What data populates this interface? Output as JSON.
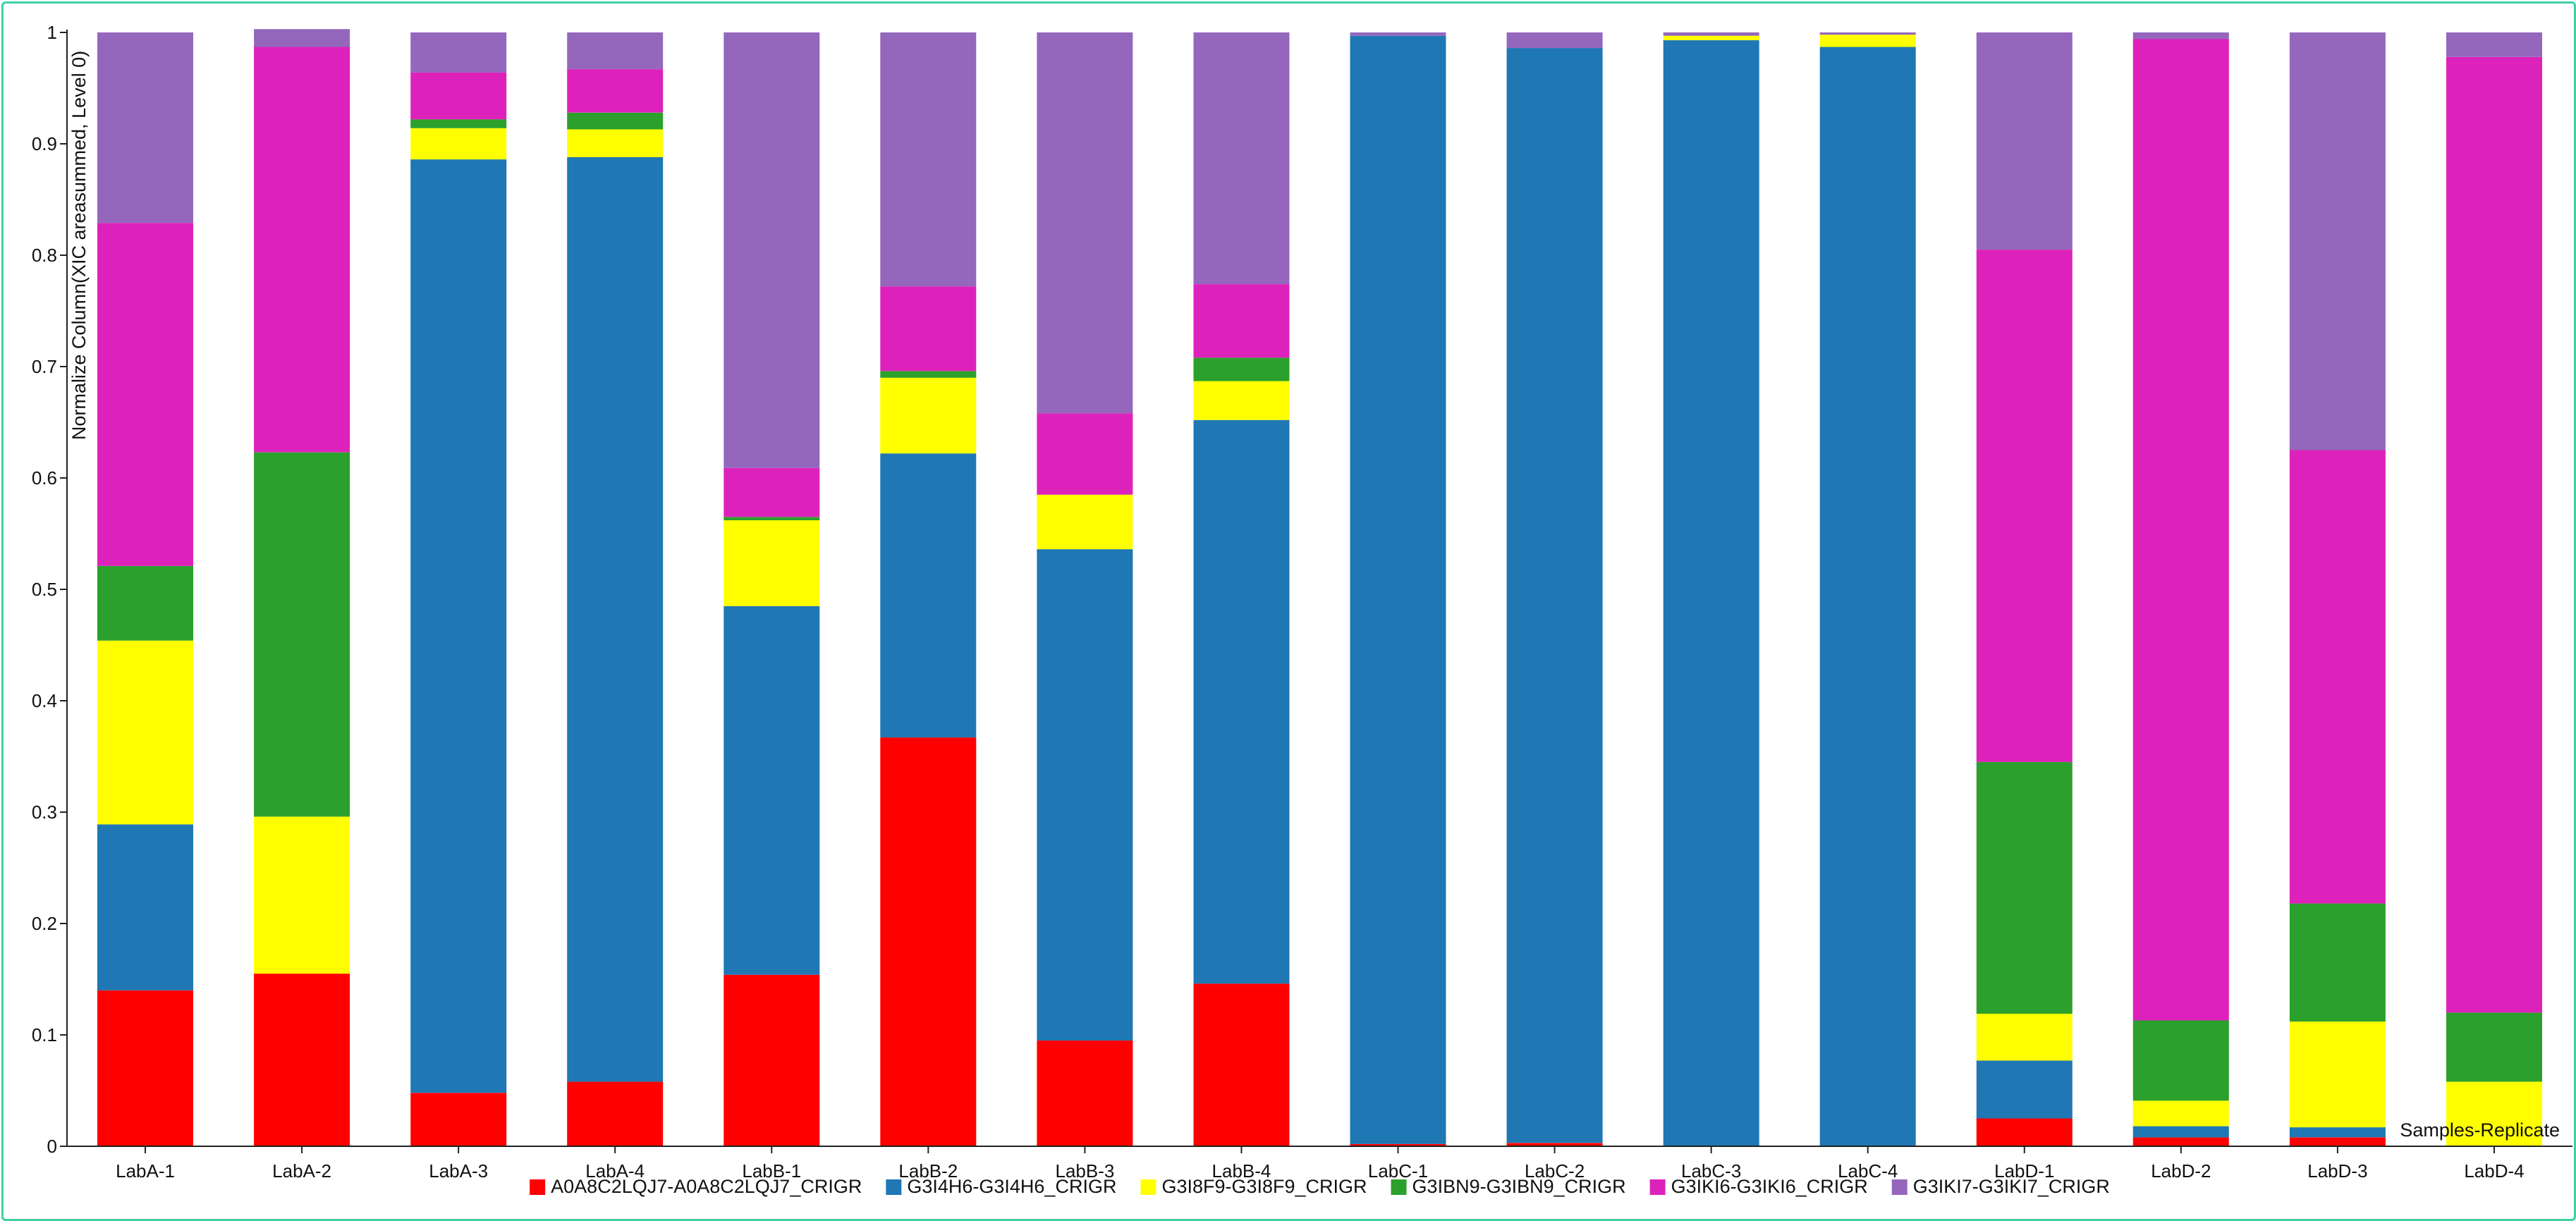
{
  "chart_data": {
    "type": "bar",
    "stacked": true,
    "ylabel": "Normalize Column(XIC areasummed, Level 0)",
    "xlabel": "Samples-Replicate",
    "ylim": [
      0,
      1
    ],
    "yticks": [
      "0",
      "0.1",
      "0.2",
      "0.3",
      "0.4",
      "0.5",
      "0.6",
      "0.7",
      "0.8",
      "0.9",
      "1"
    ],
    "grid": false,
    "legend_position": "bottom",
    "categories": [
      "LabA-1",
      "LabA-2",
      "LabA-3",
      "LabA-4",
      "LabB-1",
      "LabB-2",
      "LabB-3",
      "LabB-4",
      "LabC-1",
      "LabC-2",
      "LabC-3",
      "LabC-4",
      "LabD-1",
      "LabD-2",
      "LabD-3",
      "LabD-4"
    ],
    "series": [
      {
        "name": "A0A8C2LQJ7-A0A8C2LQJ7_CRIGR",
        "color": "#ff0000",
        "values": [
          0.14,
          0.155,
          0.048,
          0.058,
          0.154,
          0.367,
          0.095,
          0.146,
          0.002,
          0.003,
          0.0,
          0.0,
          0.025,
          0.008,
          0.008,
          0.0
        ]
      },
      {
        "name": "G3I4H6-G3I4H6_CRIGR",
        "color": "#1f77b4",
        "values": [
          0.149,
          0.0,
          0.838,
          0.83,
          0.331,
          0.255,
          0.441,
          0.506,
          0.995,
          0.983,
          0.993,
          0.987,
          0.052,
          0.01,
          0.009,
          0.0
        ]
      },
      {
        "name": "G3I8F9-G3I8F9_CRIGR",
        "color": "#ffff00",
        "values": [
          0.165,
          0.141,
          0.028,
          0.025,
          0.077,
          0.068,
          0.049,
          0.035,
          0.0,
          0.0,
          0.004,
          0.011,
          0.042,
          0.023,
          0.095,
          0.058
        ]
      },
      {
        "name": "G3IBN9-G3IBN9_CRIGR",
        "color": "#2ca02c",
        "values": [
          0.067,
          0.327,
          0.008,
          0.015,
          0.003,
          0.006,
          0.0,
          0.021,
          0.0,
          0.0,
          0.0,
          0.0,
          0.226,
          0.072,
          0.106,
          0.062
        ]
      },
      {
        "name": "G3IKI6-G3IKI6_CRIGR",
        "color": "#dd22bb",
        "values": [
          0.308,
          0.364,
          0.042,
          0.039,
          0.044,
          0.076,
          0.073,
          0.066,
          0.0,
          0.0,
          0.0,
          0.0,
          0.46,
          0.881,
          0.407,
          0.858
        ]
      },
      {
        "name": "G3IKI7-G3IKI7_CRIGR",
        "color": "#9467bd",
        "values": [
          0.171,
          0.016,
          0.036,
          0.033,
          0.391,
          0.228,
          0.342,
          0.226,
          0.003,
          0.014,
          0.003,
          0.002,
          0.195,
          0.006,
          0.375,
          0.022
        ]
      }
    ]
  }
}
